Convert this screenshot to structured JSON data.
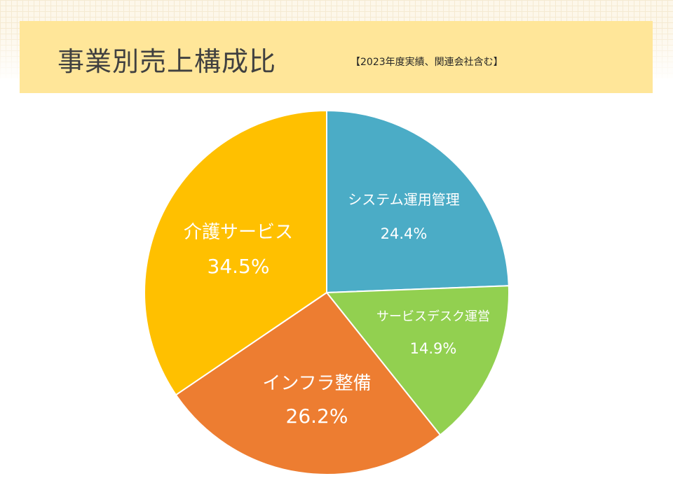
{
  "title": "事業別売上構成比",
  "subtitle": "【2023年度実績、関連会社含む】",
  "chart_data": {
    "type": "pie",
    "start_angle_deg": 0,
    "direction": "clockwise",
    "slices": [
      {
        "label": "システム運用管理",
        "value": 24.4,
        "value_label": "24.4%",
        "color": "#4bacc6"
      },
      {
        "label": "サービスデスク運営",
        "value": 14.9,
        "value_label": "14.9%",
        "color": "#92d050"
      },
      {
        "label": "インフラ整備",
        "value": 26.2,
        "value_label": "26.2%",
        "color": "#ed7d31"
      },
      {
        "label": "介護サービス",
        "value": 34.5,
        "value_label": "34.5%",
        "color": "#ffc000"
      }
    ]
  }
}
